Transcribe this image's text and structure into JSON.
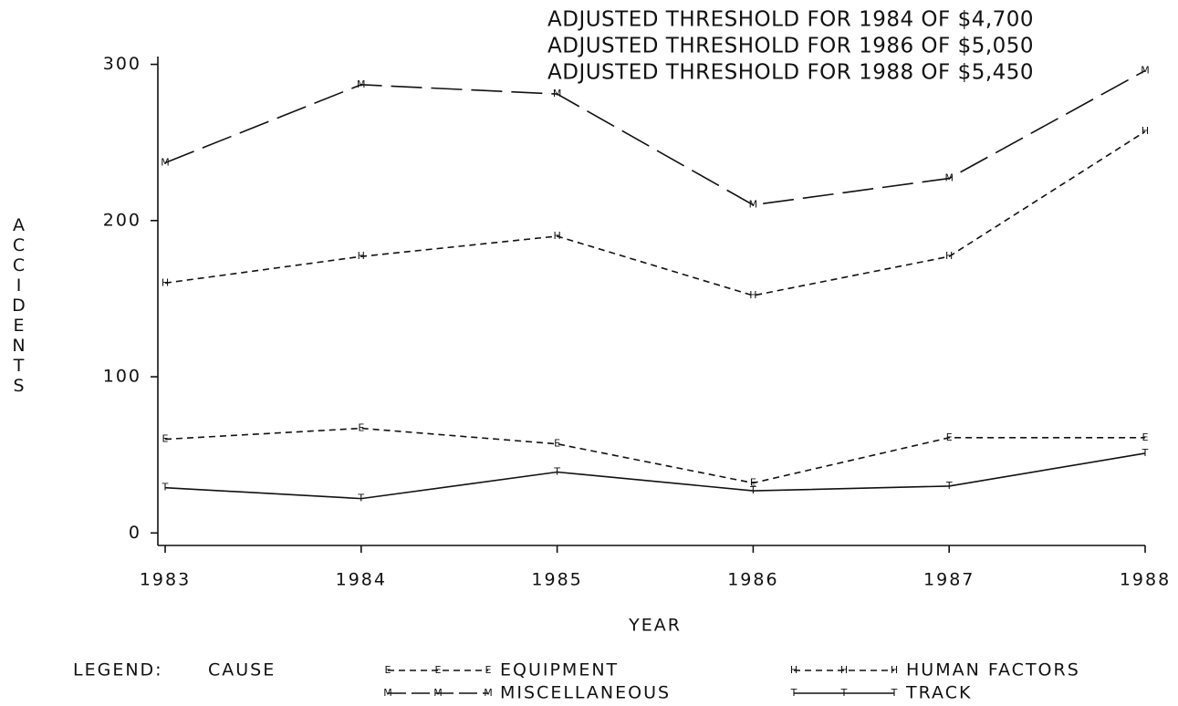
{
  "chart_data": {
    "type": "line",
    "annotations": [
      "ADJUSTED THRESHOLD FOR 1984 OF $4,700",
      "ADJUSTED THRESHOLD FOR 1986 OF $5,050",
      "ADJUSTED THRESHOLD FOR 1988 OF $5,450"
    ],
    "x_label": "YEAR",
    "y_label": "ACCIDENTS",
    "legend_title": "LEGEND:",
    "legend_subtitle": "CAUSE",
    "x": [
      1983,
      1984,
      1985,
      1986,
      1987,
      1988
    ],
    "xlim": [
      1983,
      1988
    ],
    "xticks": [
      1983,
      1984,
      1985,
      1986,
      1987,
      1988
    ],
    "ylim": [
      -8,
      305
    ],
    "yticks": [
      0,
      100,
      200,
      300
    ],
    "series": [
      {
        "name": "EQUIPMENT",
        "marker": "E",
        "line_style": "dashed",
        "color": "#111111",
        "values": [
          60,
          67,
          57,
          32,
          61,
          61
        ]
      },
      {
        "name": "HUMAN FACTORS",
        "marker": "H",
        "line_style": "dashed",
        "color": "#111111",
        "values": [
          160,
          177,
          190,
          152,
          177,
          257
        ]
      },
      {
        "name": "MISCELLANEOUS",
        "marker": "M",
        "line_style": "long-dash",
        "color": "#111111",
        "values": [
          237,
          287,
          281,
          210,
          227,
          296
        ]
      },
      {
        "name": "TRACK",
        "marker": "T",
        "line_style": "solid",
        "color": "#111111",
        "values": [
          29,
          22,
          39,
          27,
          30,
          51
        ]
      }
    ]
  }
}
